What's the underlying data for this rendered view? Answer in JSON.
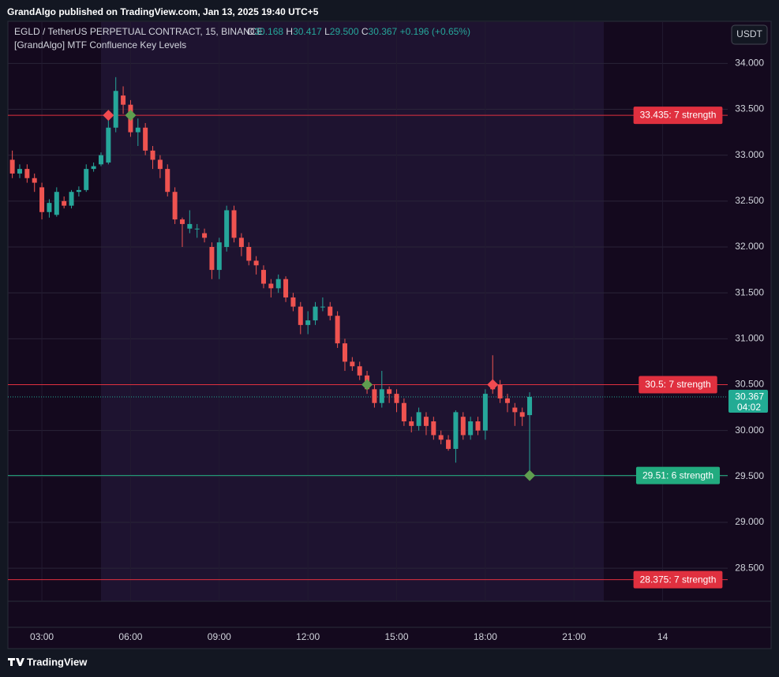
{
  "header": {
    "publisher": "GrandAlgo published on TradingView.com, Jan 13, 2025 19:40 UTC+5",
    "symbol": "EGLD / TetherUS PERPETUAL CONTRACT, 15, BINANCE",
    "ohlc": [
      {
        "key": "O",
        "value": "30.168"
      },
      {
        "key": "H",
        "value": "30.417"
      },
      {
        "key": "L",
        "value": "29.500"
      },
      {
        "key": "C",
        "value": "30.367"
      }
    ],
    "change": "+0.196 (+0.65%)",
    "indicator": "[GrandAlgo] MTF Confluence Key Levels",
    "currency": "USDT",
    "countdown": "04:02",
    "footer": "TradingView"
  },
  "chart_data": {
    "type": "candlestick",
    "grid": true,
    "up_color": "#26a69a",
    "down_color": "#ef5350",
    "x": [
      2.0,
      2.25,
      2.5,
      2.75,
      3.0,
      3.25,
      3.5,
      3.75,
      4.0,
      4.25,
      4.5,
      4.75,
      5.0,
      5.25,
      5.5,
      5.75,
      6.0,
      6.25,
      6.5,
      6.75,
      7.0,
      7.25,
      7.5,
      7.75,
      8.0,
      8.25,
      8.5,
      8.75,
      9.0,
      9.25,
      9.5,
      9.75,
      10.0,
      10.25,
      10.5,
      10.75,
      11.0,
      11.25,
      11.5,
      11.75,
      12.0,
      12.25,
      12.5,
      12.75,
      13.0,
      13.25,
      13.5,
      13.75,
      14.0,
      14.25,
      14.5,
      14.75,
      15.0,
      15.25,
      15.5,
      15.75,
      16.0,
      16.25,
      16.5,
      16.75,
      17.0,
      17.25,
      17.5,
      17.75,
      18.0,
      18.25,
      18.5,
      18.75,
      19.0,
      19.25,
      19.5
    ],
    "open": [
      32.95,
      32.8,
      32.85,
      32.75,
      32.65,
      32.38,
      32.35,
      32.5,
      32.45,
      32.6,
      32.62,
      32.85,
      32.9,
      32.92,
      33.3,
      33.65,
      33.55,
      33.25,
      33.3,
      33.05,
      32.95,
      32.85,
      32.6,
      32.3,
      32.2,
      32.2,
      32.15,
      32.0,
      31.75,
      32.0,
      32.4,
      32.1,
      32.0,
      31.85,
      31.75,
      31.6,
      31.55,
      31.65,
      31.45,
      31.35,
      31.15,
      31.2,
      31.35,
      31.35,
      31.25,
      30.95,
      30.75,
      30.7,
      30.6,
      30.45,
      30.3,
      30.45,
      30.4,
      30.3,
      30.1,
      30.05,
      30.15,
      30.1,
      29.95,
      29.9,
      29.8,
      30.15,
      29.95,
      30.1,
      30.0,
      30.5,
      30.5,
      30.35,
      30.25,
      30.2,
      30.168
    ],
    "high": [
      33.05,
      32.9,
      32.9,
      32.8,
      32.7,
      32.52,
      32.65,
      32.55,
      32.62,
      32.66,
      32.9,
      32.92,
      33.03,
      33.45,
      33.85,
      33.75,
      33.6,
      33.4,
      33.35,
      33.1,
      33.0,
      32.9,
      32.65,
      32.32,
      32.4,
      32.25,
      32.2,
      32.05,
      32.1,
      32.45,
      32.45,
      32.15,
      32.05,
      31.9,
      31.8,
      31.65,
      31.7,
      31.68,
      31.5,
      31.4,
      31.3,
      31.4,
      31.45,
      31.4,
      31.3,
      31.0,
      30.8,
      30.75,
      30.65,
      30.5,
      30.65,
      30.48,
      30.45,
      30.35,
      30.15,
      30.25,
      30.2,
      30.15,
      30.0,
      29.95,
      30.22,
      30.2,
      30.15,
      30.15,
      30.45,
      30.82,
      30.55,
      30.4,
      30.3,
      30.25,
      30.417
    ],
    "low": [
      32.75,
      32.75,
      32.7,
      32.6,
      32.3,
      32.32,
      32.33,
      32.42,
      32.42,
      32.55,
      32.6,
      32.82,
      32.88,
      32.9,
      33.25,
      33.45,
      33.2,
      33.1,
      33.0,
      32.85,
      32.75,
      32.55,
      32.25,
      32.0,
      32.15,
      32.1,
      32.05,
      31.65,
      31.65,
      31.95,
      32.05,
      31.9,
      31.8,
      31.7,
      31.55,
      31.45,
      31.5,
      31.4,
      31.3,
      31.05,
      31.05,
      31.15,
      31.3,
      31.2,
      30.9,
      30.65,
      30.65,
      30.55,
      30.4,
      30.25,
      30.25,
      30.3,
      30.2,
      30.05,
      29.98,
      30.0,
      29.95,
      29.9,
      29.85,
      29.78,
      29.65,
      29.9,
      29.9,
      29.95,
      29.9,
      30.4,
      30.3,
      30.2,
      30.05,
      30.05,
      29.5
    ],
    "close": [
      32.8,
      32.85,
      32.75,
      32.7,
      32.38,
      32.48,
      32.6,
      32.45,
      32.6,
      32.62,
      32.85,
      32.88,
      33.0,
      33.3,
      33.7,
      33.55,
      33.25,
      33.3,
      33.05,
      32.95,
      32.85,
      32.6,
      32.3,
      32.25,
      32.25,
      32.2,
      32.1,
      31.75,
      32.05,
      32.4,
      32.1,
      32.0,
      31.85,
      31.8,
      31.6,
      31.55,
      31.65,
      31.45,
      31.35,
      31.15,
      31.2,
      31.35,
      31.35,
      31.25,
      30.95,
      30.75,
      30.7,
      30.6,
      30.45,
      30.3,
      30.45,
      30.4,
      30.3,
      30.1,
      30.05,
      30.2,
      30.05,
      29.95,
      29.9,
      29.8,
      30.2,
      29.95,
      30.1,
      30.0,
      30.4,
      30.45,
      30.35,
      30.3,
      30.2,
      30.15,
      30.367
    ],
    "xlim": [
      1.85,
      26.2
    ],
    "ylim": [
      28.14,
      34.45
    ],
    "xticks": [
      {
        "value": 3,
        "label": "03:00"
      },
      {
        "value": 6,
        "label": "06:00"
      },
      {
        "value": 9,
        "label": "09:00"
      },
      {
        "value": 12,
        "label": "12:00"
      },
      {
        "value": 15,
        "label": "15:00"
      },
      {
        "value": 18,
        "label": "18:00"
      },
      {
        "value": 21,
        "label": "21:00"
      },
      {
        "value": 24,
        "label": "14"
      }
    ],
    "yticks": [
      {
        "value": 28.5,
        "label": "28.500"
      },
      {
        "value": 29,
        "label": "29.000"
      },
      {
        "value": 29.5,
        "label": "29.500"
      },
      {
        "value": 30,
        "label": "30.000"
      },
      {
        "value": 30.5,
        "label": "30.500"
      },
      {
        "value": 31,
        "label": "31.000"
      },
      {
        "value": 31.5,
        "label": "31.500"
      },
      {
        "value": 32,
        "label": "32.000"
      },
      {
        "value": 32.5,
        "label": "32.500"
      },
      {
        "value": 33,
        "label": "33.000"
      },
      {
        "value": 33.5,
        "label": "33.500"
      },
      {
        "value": 34,
        "label": "34.000"
      }
    ],
    "levels": [
      {
        "value": 33.435,
        "label": "33.435: 7 strength",
        "color": "#e0303f"
      },
      {
        "value": 30.5,
        "label": "30.5: 7 strength",
        "color": "#e0303f"
      },
      {
        "value": 29.51,
        "label": "29.51: 6 strength",
        "color": "#22ab7f"
      },
      {
        "value": 28.375,
        "label": "28.375: 7 strength",
        "color": "#e0303f"
      }
    ],
    "markers": [
      {
        "x": 5.25,
        "y": 33.435,
        "color": "#f04a50"
      },
      {
        "x": 6.0,
        "y": 33.435,
        "color": "#5f9e4f"
      },
      {
        "x": 14.0,
        "y": 30.5,
        "color": "#5f9e4f"
      },
      {
        "x": 18.25,
        "y": 30.5,
        "color": "#f04a50"
      },
      {
        "x": 19.5,
        "y": 29.51,
        "color": "#5f9e4f"
      }
    ],
    "last_price": 30.367,
    "last_price_color": "#22ab94"
  }
}
